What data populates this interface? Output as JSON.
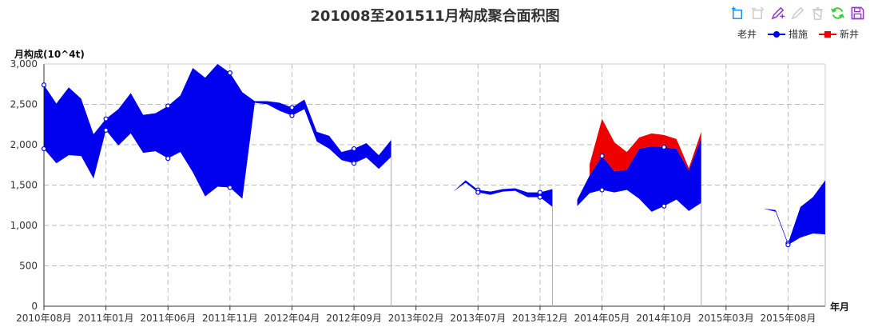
{
  "title": "201008至201511月构成聚合面积图",
  "toolbox": [
    {
      "icon": "data-zoom-icon",
      "color": "#1e90ff"
    },
    {
      "icon": "data-zoom-reset-icon",
      "color": "#cccccc"
    },
    {
      "icon": "mark-line-icon",
      "color": "#9932cc"
    },
    {
      "icon": "mark-undo-icon",
      "color": "#cccccc"
    },
    {
      "icon": "mark-clear-icon",
      "color": "#cccccc"
    },
    {
      "icon": "refresh-icon",
      "color": "#32cd32"
    },
    {
      "icon": "save-image-icon",
      "color": "#9932cc"
    }
  ],
  "chart_data": {
    "type": "area",
    "title": "201008至201511月构成聚合面积图",
    "ylabel": "月构成(10^4t)",
    "xlabel": "年月",
    "ylim": [
      0,
      3000
    ],
    "yticks": [
      0,
      500,
      1000,
      1500,
      2000,
      2500,
      3000
    ],
    "ytick_labels": [
      "0",
      "500",
      "1,000",
      "1,500",
      "2,000",
      "2,500",
      "3,000"
    ],
    "x_range": [
      "2010-08",
      "2015-11"
    ],
    "x_labels": [
      "2010年08月",
      "2011年01月",
      "2011年06月",
      "2011年11月",
      "2012年04月",
      "2012年09月",
      "2013年02月",
      "2013年07月",
      "2013年12月",
      "2014年05月",
      "2014年10月",
      "2015年03月",
      "2015年08月"
    ],
    "grid": true,
    "legend_position": "top-right",
    "series": [
      {
        "name": "老井",
        "color": "#0000ee",
        "role": "lower-bound",
        "values": [
          [
            "2010-08",
            1950
          ],
          [
            "2010-09",
            1770
          ],
          [
            "2010-10",
            1870
          ],
          [
            "2010-11",
            1860
          ],
          [
            "2010-12",
            1580
          ],
          [
            "2011-01",
            2180
          ],
          [
            "2011-02",
            1990
          ],
          [
            "2011-03",
            2140
          ],
          [
            "2011-04",
            1900
          ],
          [
            "2011-05",
            1920
          ],
          [
            "2011-06",
            1830
          ],
          [
            "2011-07",
            1910
          ],
          [
            "2011-08",
            1660
          ],
          [
            "2011-09",
            1360
          ],
          [
            "2011-10",
            1480
          ],
          [
            "2011-11",
            1470
          ],
          [
            "2011-12",
            1330
          ],
          [
            "2012-01",
            2520
          ],
          [
            "2012-02",
            2500
          ],
          [
            "2012-03",
            2420
          ],
          [
            "2012-04",
            2360
          ],
          [
            "2012-05",
            2440
          ],
          [
            "2012-06",
            2040
          ],
          [
            "2012-07",
            1950
          ],
          [
            "2012-08",
            1810
          ],
          [
            "2012-09",
            1770
          ],
          [
            "2012-10",
            1840
          ],
          [
            "2012-11",
            1700
          ],
          [
            "2012-12",
            1850
          ],
          [
            "2013-05",
            1420
          ],
          [
            "2013-06",
            1530
          ],
          [
            "2013-07",
            1410
          ],
          [
            "2013-08",
            1380
          ],
          [
            "2013-09",
            1420
          ],
          [
            "2013-10",
            1430
          ],
          [
            "2013-11",
            1350
          ],
          [
            "2013-12",
            1350
          ],
          [
            "2014-01",
            1230
          ],
          [
            "2014-03",
            1240
          ],
          [
            "2014-04",
            1400
          ],
          [
            "2014-05",
            1440
          ],
          [
            "2014-06",
            1410
          ],
          [
            "2014-07",
            1440
          ],
          [
            "2014-08",
            1330
          ],
          [
            "2014-09",
            1170
          ],
          [
            "2014-10",
            1240
          ],
          [
            "2014-11",
            1320
          ],
          [
            "2014-12",
            1180
          ],
          [
            "2015-01",
            1280
          ],
          [
            "2015-05",
            1280
          ],
          [
            "2015-06",
            1210
          ],
          [
            "2015-07",
            1170
          ],
          [
            "2015-08",
            760
          ],
          [
            "2015-09",
            850
          ],
          [
            "2015-10",
            900
          ],
          [
            "2015-11",
            890
          ]
        ]
      },
      {
        "name": "措施",
        "color": "#0000ee",
        "role": "upper-bound",
        "values": [
          [
            "2010-08",
            2740
          ],
          [
            "2010-09",
            2510
          ],
          [
            "2010-10",
            2710
          ],
          [
            "2010-11",
            2570
          ],
          [
            "2010-12",
            2130
          ],
          [
            "2011-01",
            2320
          ],
          [
            "2011-02",
            2440
          ],
          [
            "2011-03",
            2640
          ],
          [
            "2011-04",
            2370
          ],
          [
            "2011-05",
            2390
          ],
          [
            "2011-06",
            2480
          ],
          [
            "2011-07",
            2610
          ],
          [
            "2011-08",
            2950
          ],
          [
            "2011-09",
            2830
          ],
          [
            "2011-10",
            3000
          ],
          [
            "2011-11",
            2890
          ],
          [
            "2011-12",
            2650
          ],
          [
            "2012-01",
            2540
          ],
          [
            "2012-02",
            2540
          ],
          [
            "2012-03",
            2520
          ],
          [
            "2012-04",
            2460
          ],
          [
            "2012-05",
            2560
          ],
          [
            "2012-06",
            2160
          ],
          [
            "2012-07",
            2110
          ],
          [
            "2012-08",
            1910
          ],
          [
            "2012-09",
            1950
          ],
          [
            "2012-10",
            2020
          ],
          [
            "2012-11",
            1870
          ],
          [
            "2012-12",
            2060
          ],
          [
            "2013-05",
            1420
          ],
          [
            "2013-06",
            1560
          ],
          [
            "2013-07",
            1440
          ],
          [
            "2013-08",
            1420
          ],
          [
            "2013-09",
            1450
          ],
          [
            "2013-10",
            1460
          ],
          [
            "2013-11",
            1410
          ],
          [
            "2013-12",
            1410
          ],
          [
            "2014-01",
            1450
          ],
          [
            "2014-03",
            1320
          ],
          [
            "2014-04",
            1620
          ],
          [
            "2014-05",
            1860
          ],
          [
            "2014-06",
            1670
          ],
          [
            "2014-07",
            1690
          ],
          [
            "2014-08",
            1950
          ],
          [
            "2014-09",
            1980
          ],
          [
            "2014-10",
            1970
          ],
          [
            "2014-11",
            1950
          ],
          [
            "2014-12",
            1680
          ],
          [
            "2015-01",
            2080
          ],
          [
            "2015-05",
            1280
          ],
          [
            "2015-06",
            1210
          ],
          [
            "2015-07",
            1190
          ],
          [
            "2015-08",
            780
          ],
          [
            "2015-09",
            1230
          ],
          [
            "2015-10",
            1350
          ],
          [
            "2015-11",
            1560
          ]
        ]
      },
      {
        "name": "新井",
        "color": "#ee0000",
        "role": "stacked-top",
        "values": [
          [
            "2014-04",
            1760
          ],
          [
            "2014-05",
            2320
          ],
          [
            "2014-06",
            2030
          ],
          [
            "2014-07",
            1910
          ],
          [
            "2014-08",
            2090
          ],
          [
            "2014-09",
            2140
          ],
          [
            "2014-10",
            2120
          ],
          [
            "2014-11",
            2070
          ],
          [
            "2014-12",
            1710
          ],
          [
            "2015-01",
            2160
          ]
        ]
      }
    ]
  }
}
